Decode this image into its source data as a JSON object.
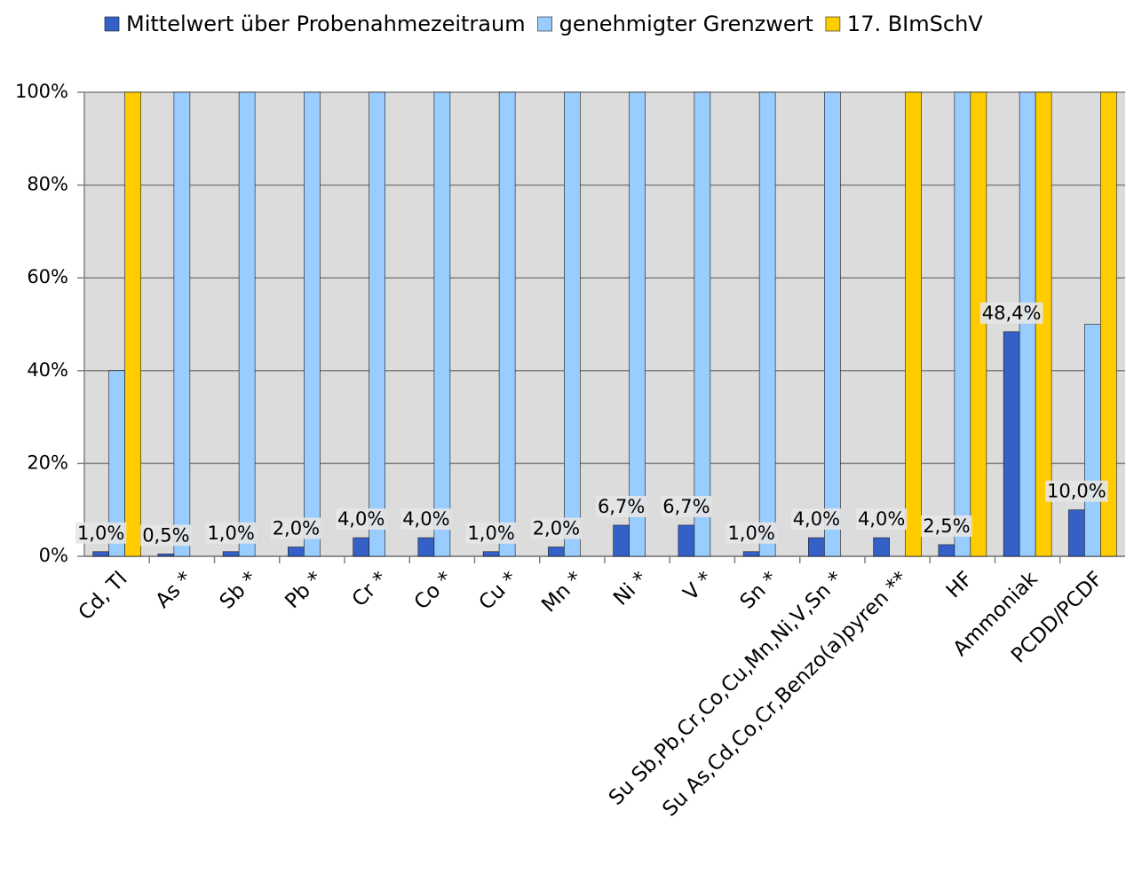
{
  "chart_data": {
    "type": "bar",
    "categories": [
      "Cd, Tl",
      "As *",
      "Sb *",
      "Pb *",
      "Cr *",
      "Co *",
      "Cu *",
      "Mn *",
      "Ni *",
      "V *",
      "Sn *",
      "Su Sb,Pb,Cr,Co,Cu,Mn,Ni,V,Sn *",
      "Su As,Cd,Co,Cr,Benzo(a)pyren **",
      "HF",
      "Ammoniak",
      "PCDD/PCDF"
    ],
    "series": [
      {
        "name": "Mittelwert über Probenahmezeitraum",
        "color": "#3560c8",
        "values": [
          1.0,
          0.5,
          1.0,
          2.0,
          4.0,
          4.0,
          1.0,
          2.0,
          6.7,
          6.7,
          1.0,
          4.0,
          4.0,
          2.5,
          48.4,
          10.0
        ],
        "value_labels": [
          "1,0%",
          "0,5%",
          "1,0%",
          "2,0%",
          "4,0%",
          "4,0%",
          "1,0%",
          "2,0%",
          "6,7%",
          "6,7%",
          "1,0%",
          "4,0%",
          "4,0%",
          "2,5%",
          "48,4%",
          "10,0%"
        ]
      },
      {
        "name": "genehmigter Grenzwert",
        "color": "#99ccff",
        "values": [
          40,
          100,
          100,
          100,
          100,
          100,
          100,
          100,
          100,
          100,
          100,
          100,
          null,
          100,
          100,
          50
        ]
      },
      {
        "name": "17. BImSchV",
        "color": "#ffcc00",
        "values": [
          100,
          null,
          null,
          null,
          null,
          null,
          null,
          null,
          null,
          null,
          null,
          null,
          100,
          100,
          100,
          100
        ]
      }
    ],
    "ylim": [
      0,
      100
    ],
    "yticks": [
      {
        "value": 0,
        "label": "0%"
      },
      {
        "value": 20,
        "label": "20%"
      },
      {
        "value": 40,
        "label": "40%"
      },
      {
        "value": 60,
        "label": "60%"
      },
      {
        "value": 80,
        "label": "80%"
      },
      {
        "value": 100,
        "label": "100%"
      }
    ],
    "grid": true,
    "legend": "top"
  }
}
